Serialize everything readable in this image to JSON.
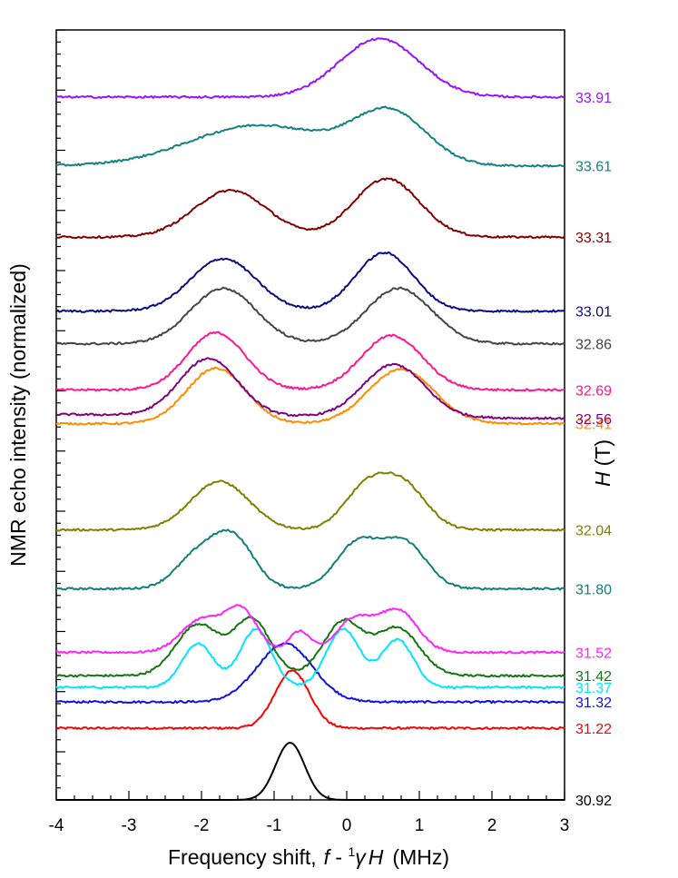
{
  "chart_data": {
    "type": "line",
    "title": "",
    "xlabel_parts": {
      "prefix": "Frequency shift,",
      "f": "f",
      "minus": " - ",
      "sup": "1",
      "gamma": "γ",
      "H": "H",
      "unit": "(MHz)"
    },
    "ylabel": "NMR echo intensity (normalized)",
    "right_label_parts": {
      "H": "H",
      "unit": "(T)"
    },
    "xlim": [
      -4,
      3
    ],
    "xticks": [
      "-4",
      "-3",
      "-2",
      "-1",
      "0",
      "1",
      "2",
      "3"
    ],
    "grid": false,
    "offset_scale_ylim": [
      0,
      13.2
    ],
    "series": [
      {
        "name": "30.92",
        "color": "#000000",
        "offset": 0.0,
        "peaks": [
          [
            -0.78,
            0.2,
            1.0
          ]
        ],
        "amp": 0.98,
        "bg": 0.0,
        "slope": 0.0
      },
      {
        "name": "31.22",
        "color": "#ff0000",
        "offset": 1.23,
        "peaks": [
          [
            -0.75,
            0.24,
            1.0
          ]
        ],
        "amp": 0.98,
        "bg": 0.0,
        "slope": 0.0
      },
      {
        "name": "31.32",
        "color": "#1111dd",
        "offset": 1.66,
        "peaks": [
          [
            -0.85,
            0.38,
            1.0
          ]
        ],
        "amp": 1.0,
        "bg": 0.02,
        "slope": 0.0
      },
      {
        "name": "31.37",
        "color": "#00e5ff",
        "offset": 1.85,
        "peaks": [
          [
            -2.05,
            0.22,
            0.75
          ],
          [
            -1.25,
            0.22,
            1.0
          ],
          [
            -0.05,
            0.23,
            1.0
          ],
          [
            0.7,
            0.22,
            0.82
          ]
        ],
        "amp": 1.0,
        "bg": 0.08,
        "slope": 0.0
      },
      {
        "name": "31.42",
        "color": "#117711",
        "offset": 2.08,
        "peaks": [
          [
            -2.05,
            0.3,
            0.92
          ],
          [
            -1.3,
            0.25,
            1.0
          ],
          [
            -0.05,
            0.27,
            0.96
          ],
          [
            0.7,
            0.3,
            0.85
          ]
        ],
        "amp": 1.0,
        "bg": 0.05,
        "slope": 0.0
      },
      {
        "name": "31.52",
        "color": "#ff22ff",
        "offset": 2.48,
        "peaks": [
          [
            -2.0,
            0.28,
            0.62
          ],
          [
            -1.45,
            0.22,
            0.78
          ],
          [
            -0.65,
            0.15,
            0.4
          ],
          [
            0.1,
            0.24,
            0.62
          ],
          [
            0.7,
            0.27,
            0.8
          ]
        ],
        "amp": 0.8,
        "bg": 0.05,
        "slope": 0.0
      },
      {
        "name": "31.80",
        "color": "#117f7f",
        "offset": 3.62,
        "peaks": [
          [
            -2.05,
            0.3,
            0.65
          ],
          [
            -1.55,
            0.28,
            0.95
          ],
          [
            0.15,
            0.3,
            0.9
          ],
          [
            0.8,
            0.3,
            0.9
          ]
        ],
        "amp": 1.0,
        "bg": 0.0,
        "slope": 0.0
      },
      {
        "name": "32.04",
        "color": "#808000",
        "offset": 4.55,
        "peaks": [
          [
            -1.75,
            0.4,
            1.0
          ],
          [
            0.25,
            0.3,
            0.8
          ],
          [
            0.78,
            0.32,
            0.9
          ]
        ],
        "amp": 0.98,
        "bg": 0.08,
        "slope": 0.0
      },
      {
        "name": "32.41",
        "color": "#ff8c00",
        "offset": 6.35,
        "peaks": [
          [
            -1.8,
            0.4,
            1.0
          ],
          [
            0.75,
            0.45,
            0.98
          ]
        ],
        "amp": 0.95,
        "bg": 0.1,
        "slope": 0.0
      },
      {
        "name": "32.56",
        "color": "#800080",
        "offset": 6.55,
        "peaks": [
          [
            -1.9,
            0.4,
            1.0
          ],
          [
            0.65,
            0.42,
            0.92
          ]
        ],
        "amp": 0.98,
        "bg": 0.06,
        "slope": -0.01
      },
      {
        "name": "32.69",
        "color": "#ff1493",
        "offset": 6.98,
        "peaks": [
          [
            -1.8,
            0.4,
            1.0
          ],
          [
            0.62,
            0.42,
            0.95
          ]
        ],
        "amp": 0.98,
        "bg": 0.05,
        "slope": 0.0
      },
      {
        "name": "32.86",
        "color": "#444444",
        "offset": 7.77,
        "peaks": [
          [
            -1.7,
            0.45,
            1.0
          ],
          [
            0.72,
            0.45,
            1.0
          ]
        ],
        "amp": 0.95,
        "bg": 0.05,
        "slope": 0.0
      },
      {
        "name": "33.01",
        "color": "#0a0a80",
        "offset": 8.33,
        "peaks": [
          [
            -1.7,
            0.45,
            0.9
          ],
          [
            0.52,
            0.4,
            1.0
          ]
        ],
        "amp": 1.0,
        "bg": 0.05,
        "slope": 0.0
      },
      {
        "name": "33.31",
        "color": "#800000",
        "offset": 9.6,
        "peaks": [
          [
            -1.6,
            0.5,
            0.8
          ],
          [
            0.55,
            0.45,
            1.0
          ]
        ],
        "amp": 1.0,
        "bg": 0.05,
        "slope": 0.0
      },
      {
        "name": "33.61",
        "color": "#138282",
        "offset": 10.82,
        "peaks": [
          [
            -1.2,
            0.95,
            0.8
          ],
          [
            0.6,
            0.5,
            1.0
          ]
        ],
        "amp": 1.0,
        "bg": 0.05,
        "slope": 0.0
      },
      {
        "name": "33.91",
        "color": "#9911ff",
        "offset": 12.05,
        "peaks": [
          [
            0.45,
            0.55,
            1.0
          ]
        ],
        "amp": 1.0,
        "bg": 0.0,
        "slope": 0.0
      }
    ]
  }
}
